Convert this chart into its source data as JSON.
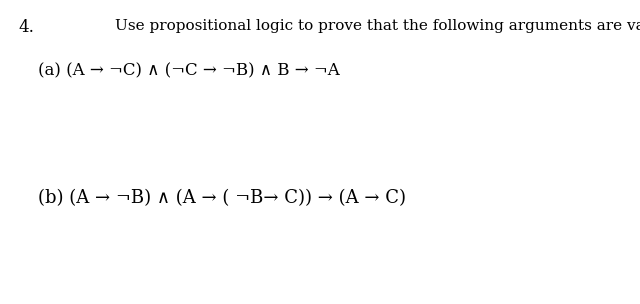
{
  "background_color": "#ffffff",
  "number_text": "4.",
  "number_fontsize": 12,
  "header_text": "Use propositional logic to prove that the following arguments are valid:",
  "header_fontsize": 11,
  "line_a_text": "(a) (A → ¬C) ∧ (¬C → ¬B) ∧ B → ¬A",
  "line_a_fontsize": 12,
  "line_b_text": "(b) (A → ¬B) ∧ (A → ( ¬B→ C)) → (A → C)",
  "line_b_fontsize": 13
}
